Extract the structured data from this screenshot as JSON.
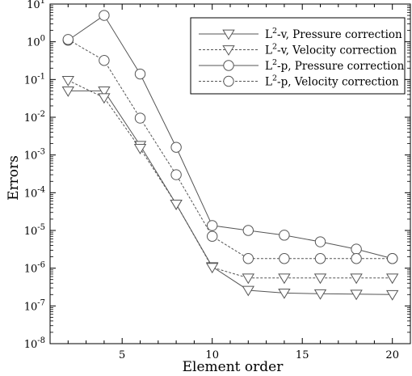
{
  "chart_data": {
    "type": "line",
    "xlabel": "Element order",
    "ylabel": "Errors",
    "xlim": [
      1,
      21
    ],
    "ylim": [
      1e-08,
      10
    ],
    "yscale": "log",
    "grid": false,
    "legend_position": "top-right",
    "x_ticks": [
      5,
      10,
      15,
      20
    ],
    "y_ticks": [
      {
        "value": 1e-08,
        "base": "10",
        "exp": "-8"
      },
      {
        "value": 1e-07,
        "base": "10",
        "exp": "-7"
      },
      {
        "value": 1e-06,
        "base": "10",
        "exp": "-6"
      },
      {
        "value": 1e-05,
        "base": "10",
        "exp": "-5"
      },
      {
        "value": 0.0001,
        "base": "10",
        "exp": "-4"
      },
      {
        "value": 0.001,
        "base": "10",
        "exp": "-3"
      },
      {
        "value": 0.01,
        "base": "10",
        "exp": "-2"
      },
      {
        "value": 0.1,
        "base": "10",
        "exp": "-1"
      },
      {
        "value": 1,
        "base": "10",
        "exp": "0"
      },
      {
        "value": 10,
        "base": "10",
        "exp": "1"
      }
    ],
    "series": [
      {
        "name": "L2-v, Pressure correction",
        "legend_prefix": "L",
        "legend_sup": "2",
        "legend_suffix": "-v, Pressure correction",
        "marker": "triangle-down",
        "line": "solid",
        "color": "#555555",
        "x": [
          2,
          4,
          6,
          8,
          10,
          12,
          14,
          16,
          18,
          20
        ],
        "y": [
          0.05,
          0.05,
          0.0018,
          5e-05,
          1.1e-06,
          2.6e-07,
          2.2e-07,
          2.1e-07,
          2.05e-07,
          2e-07
        ]
      },
      {
        "name": "L2-v, Velocity correction",
        "legend_prefix": "L",
        "legend_sup": "2",
        "legend_suffix": "-v, Velocity correction",
        "marker": "triangle-down",
        "line": "dashed",
        "color": "#555555",
        "x": [
          2,
          4,
          6,
          8,
          10,
          12,
          14,
          16,
          18,
          20
        ],
        "y": [
          0.095,
          0.033,
          0.0015,
          5e-05,
          1.05e-06,
          5.5e-07,
          5.5e-07,
          5.5e-07,
          5.5e-07,
          5.5e-07
        ]
      },
      {
        "name": "L2-p, Pressure correction",
        "legend_prefix": "L",
        "legend_sup": "2",
        "legend_suffix": "-p, Pressure correction",
        "marker": "circle",
        "line": "solid",
        "color": "#555555",
        "x": [
          2,
          4,
          6,
          8,
          10,
          12,
          14,
          16,
          18,
          20
        ],
        "y": [
          1.1,
          5.0,
          0.14,
          0.0016,
          1.35e-05,
          1e-05,
          7.5e-06,
          5e-06,
          3.2e-06,
          1.8e-06
        ]
      },
      {
        "name": "L2-p, Velocity correction",
        "legend_prefix": "L",
        "legend_sup": "2",
        "legend_suffix": "-p, Velocity correction",
        "marker": "circle",
        "line": "dashed",
        "color": "#555555",
        "x": [
          2,
          4,
          6,
          8,
          10,
          12,
          14,
          16,
          18,
          20
        ],
        "y": [
          1.15,
          0.32,
          0.0095,
          0.0003,
          7e-06,
          1.8e-06,
          1.8e-06,
          1.8e-06,
          1.8e-06,
          1.8e-06
        ]
      }
    ]
  }
}
